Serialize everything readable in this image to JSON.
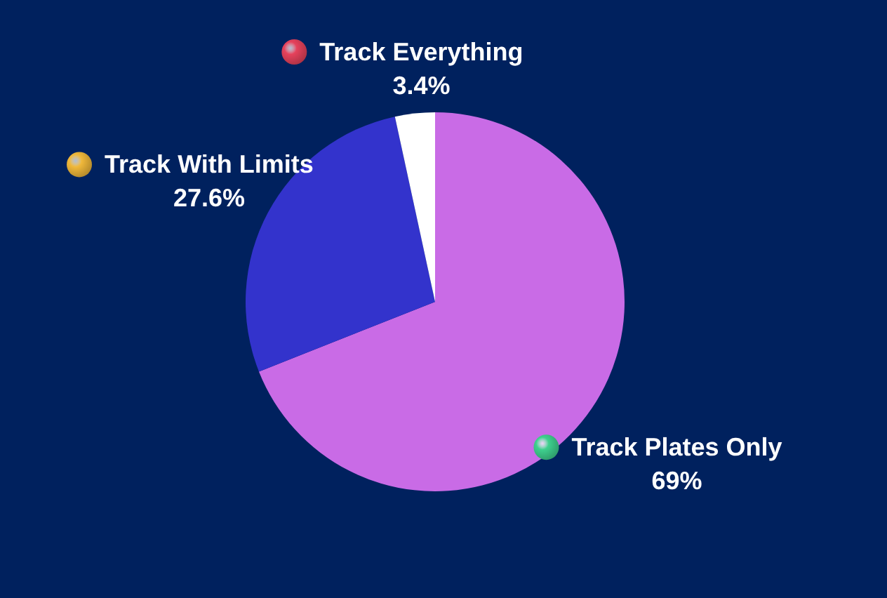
{
  "chart_data": {
    "type": "pie",
    "categories": [
      "Track Plates Only",
      "Track With Limits",
      "Track Everything"
    ],
    "values": [
      69,
      27.6,
      3.4
    ],
    "value_labels": [
      "69%",
      "27.6%",
      "3.4%"
    ],
    "colors": [
      "#c96be6",
      "#3333cc",
      "#ffffff"
    ],
    "legend": "top left"
  }
}
